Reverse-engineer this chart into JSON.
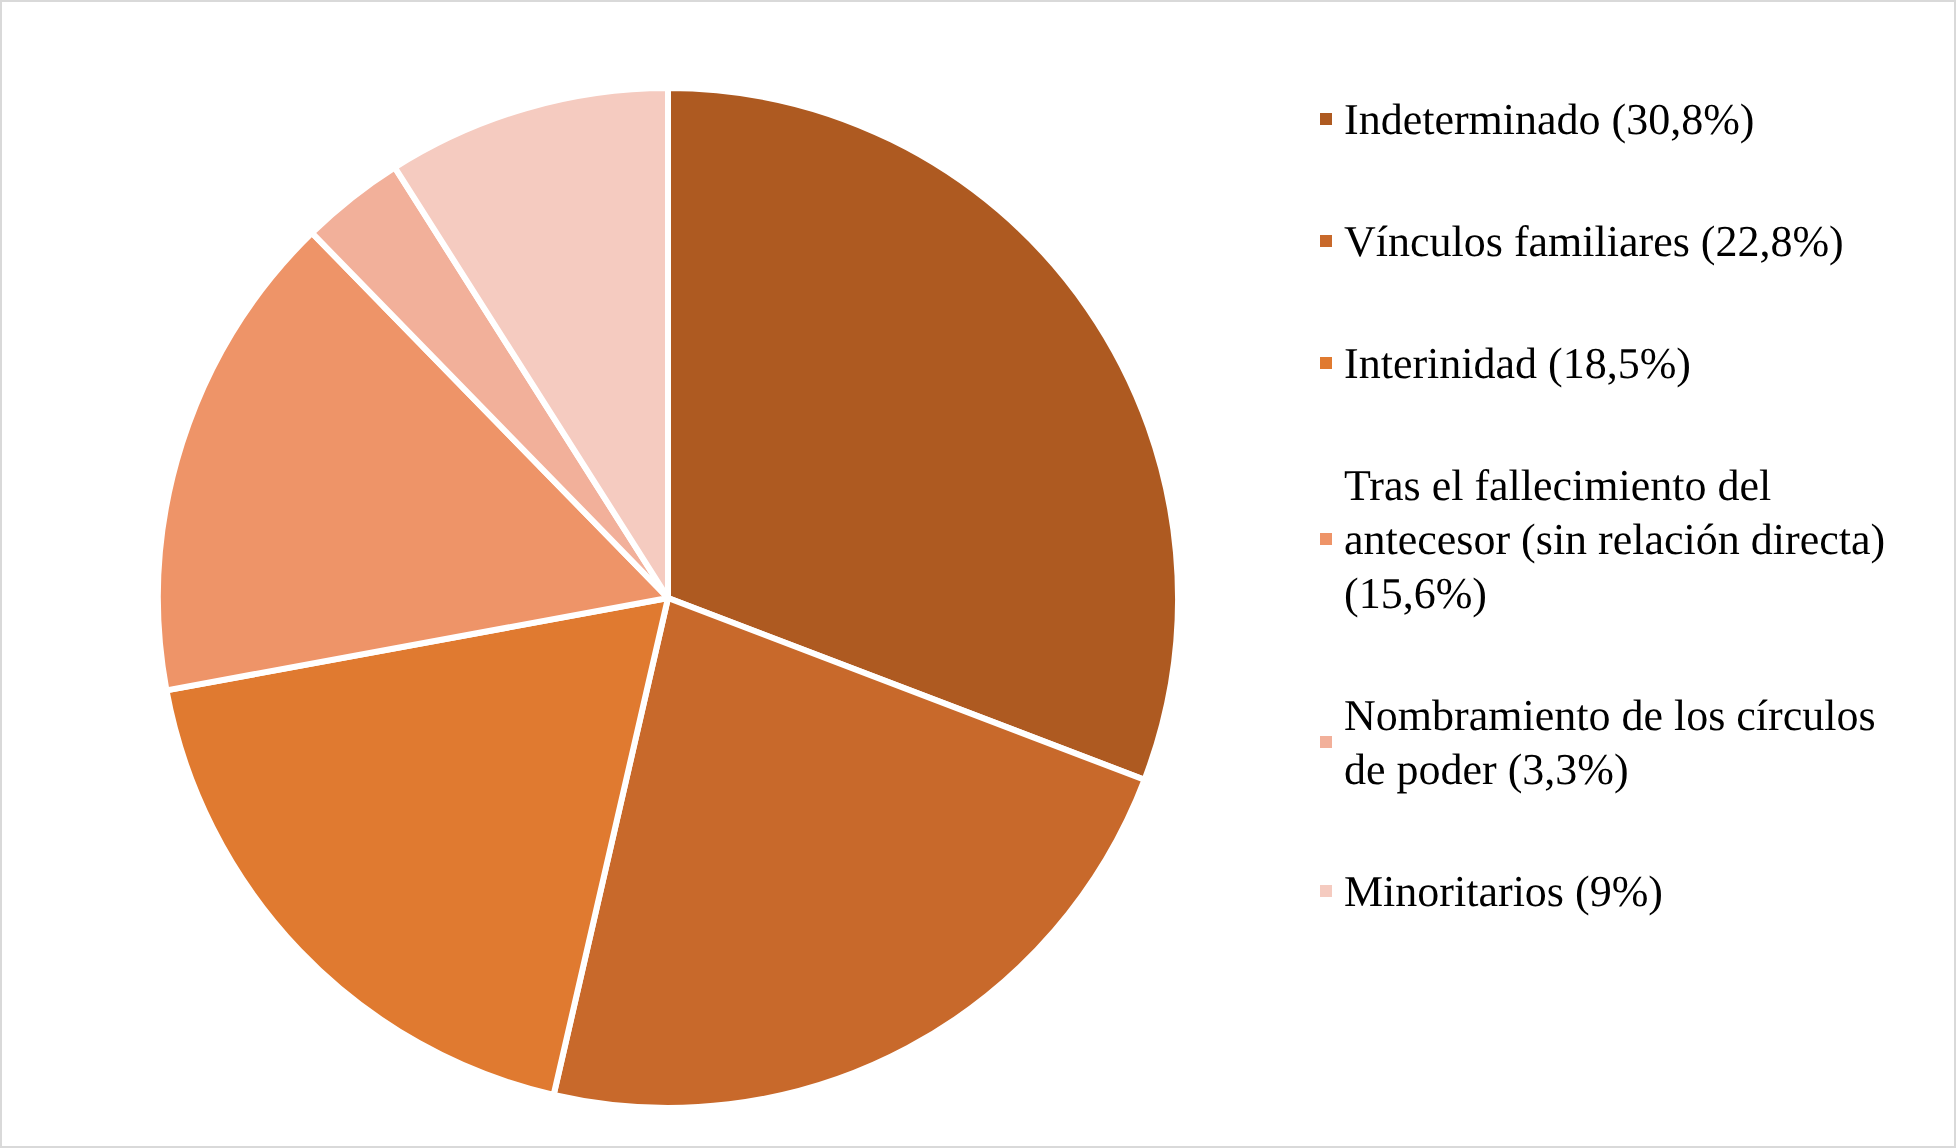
{
  "chart_data": {
    "type": "pie",
    "categories": [
      "Indeterminado (30,8%)",
      "Vínculos familiares (22,8%)",
      "Interinidad (18,5%)",
      "Tras el fallecimiento del antecesor (sin relación directa) (15,6%)",
      "Nombramiento de los círculos de poder (3,3%)",
      "Minoritarios (9%)"
    ],
    "values": [
      30.8,
      22.8,
      18.5,
      15.6,
      3.3,
      9
    ],
    "colors": [
      "#ae5a21",
      "#c8692b",
      "#e07a30",
      "#ee9468",
      "#f2b09a",
      "#f5cbc0"
    ],
    "legend": "right"
  }
}
